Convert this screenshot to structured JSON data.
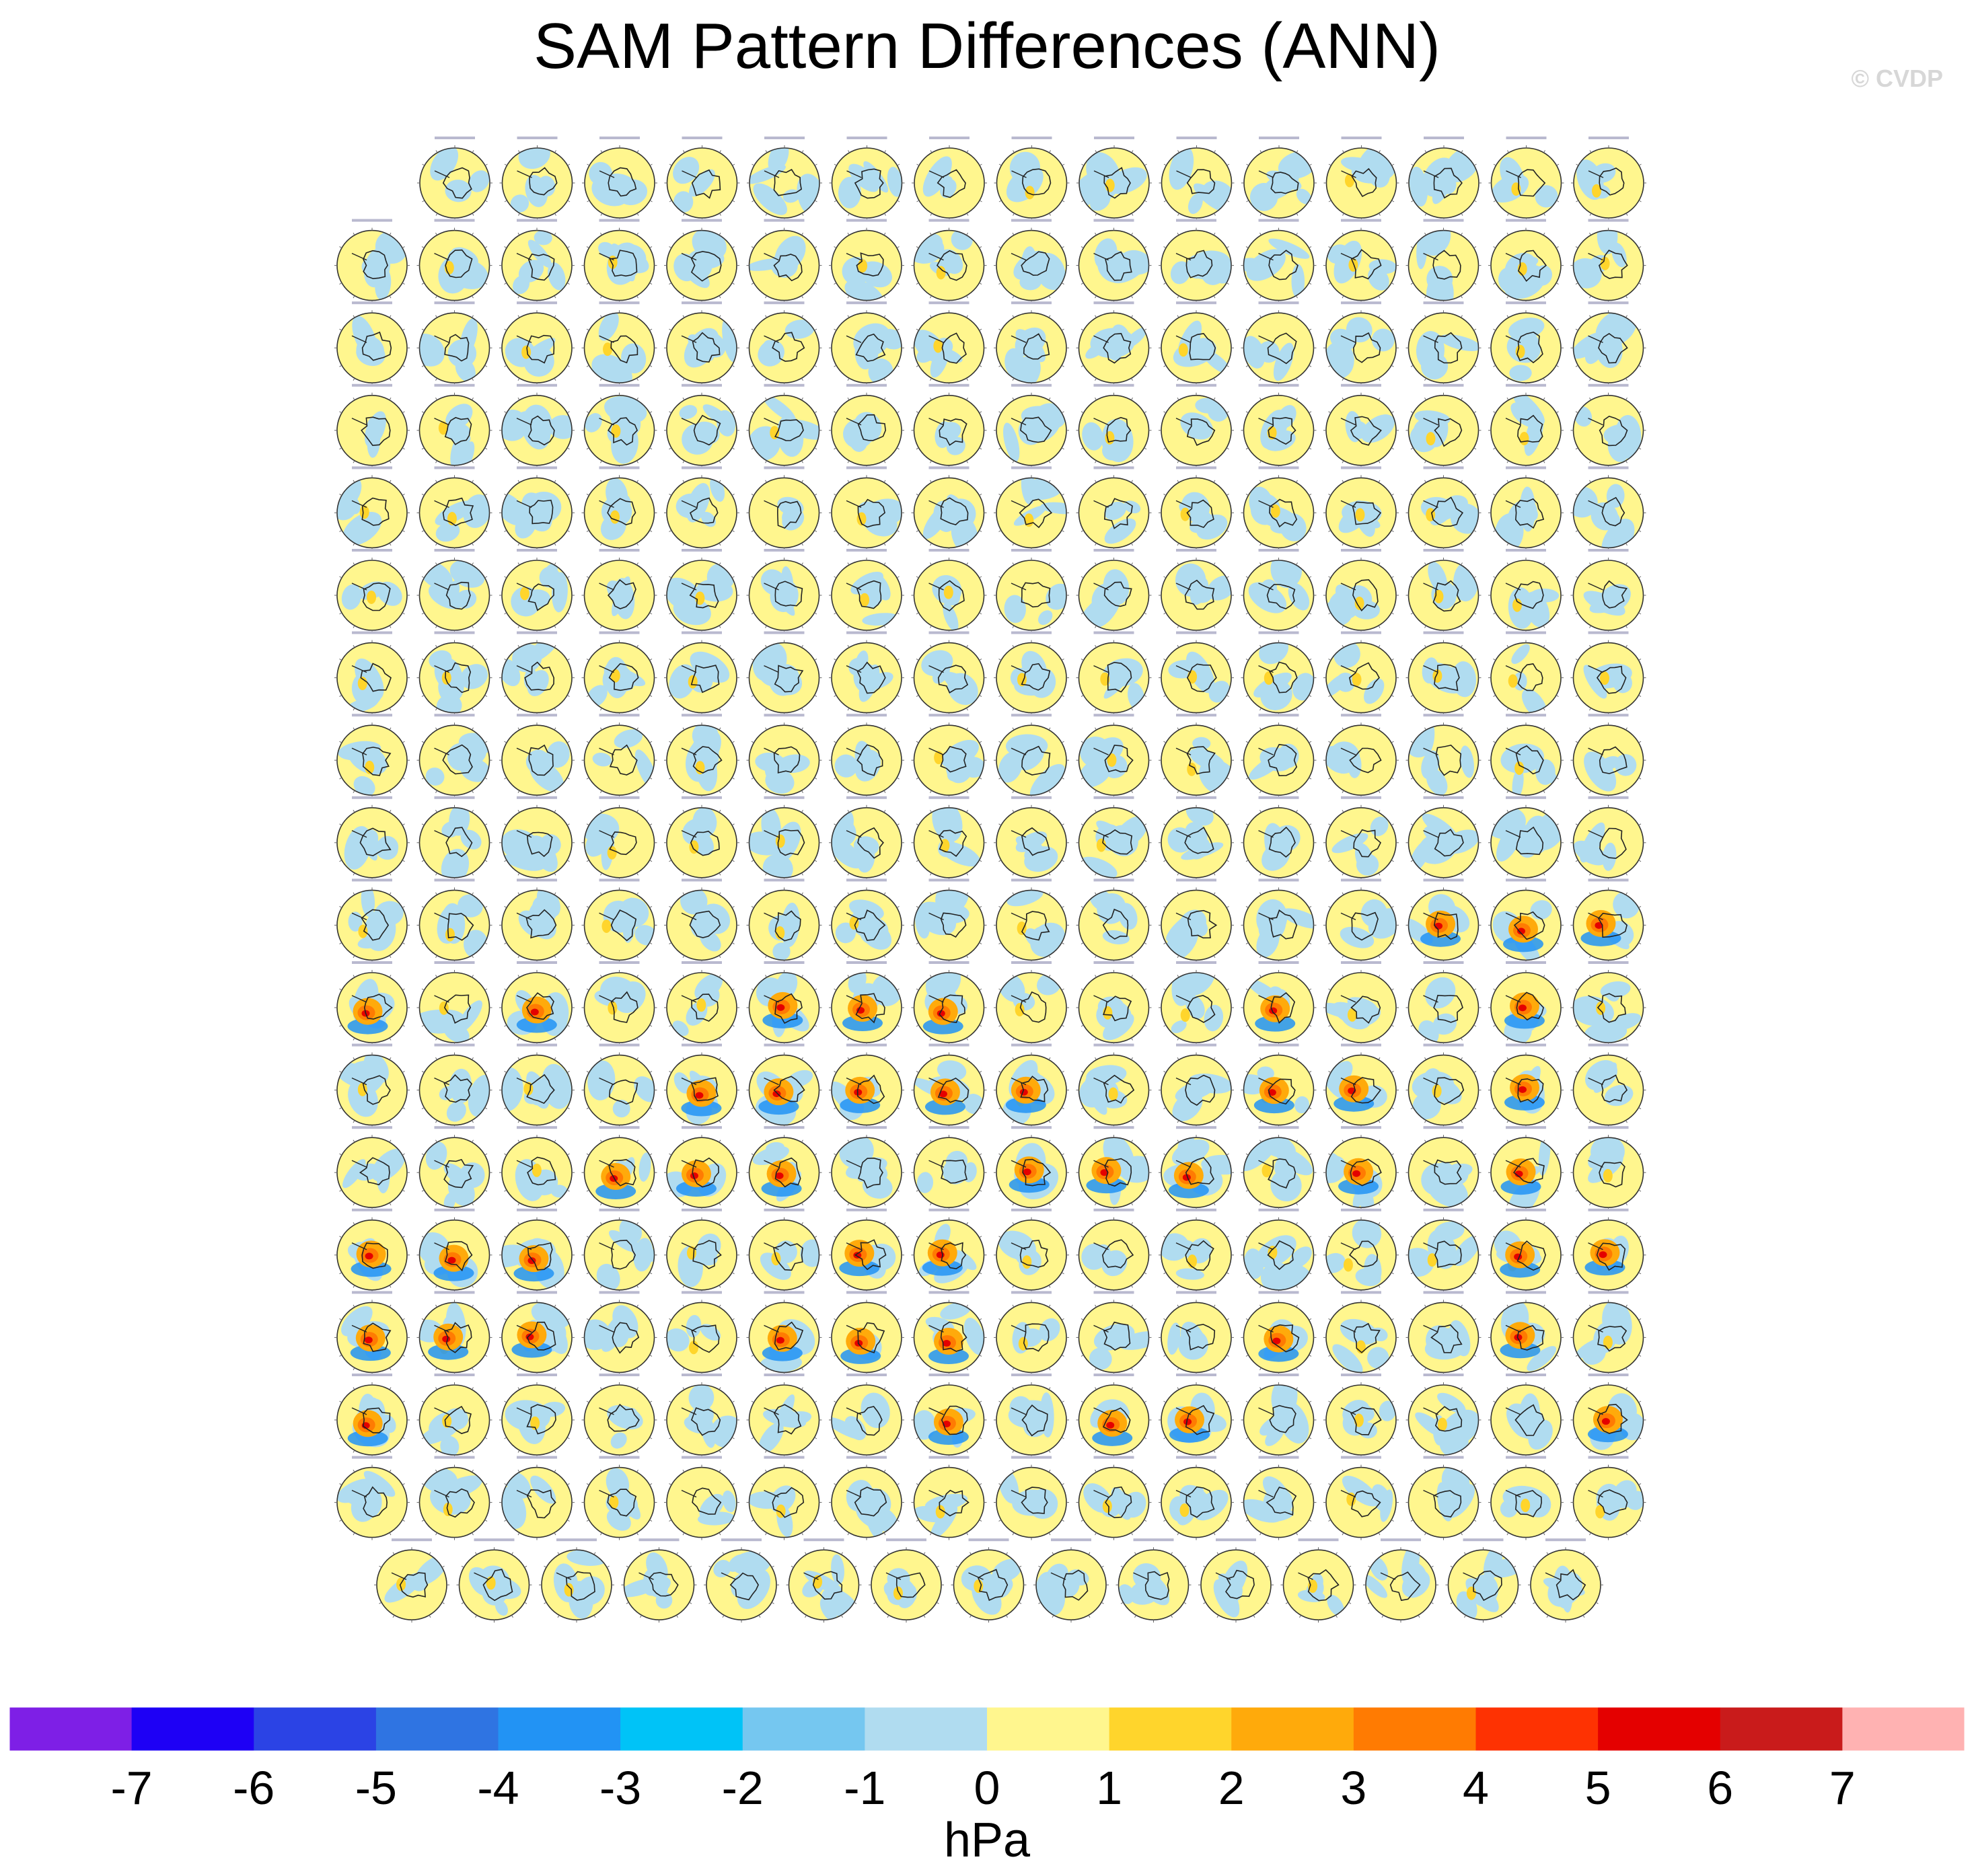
{
  "title": "SAM Pattern Differences (ANN)",
  "credit": "© CVDP",
  "chart_data": {
    "type": "heatmap",
    "title": "SAM Pattern Differences (ANN)",
    "units": "hPa",
    "colorbar": {
      "ticks": [
        "-7",
        "-6",
        "-5",
        "-4",
        "-3",
        "-2",
        "-1",
        "0",
        "1",
        "2",
        "3",
        "4",
        "5",
        "6",
        "7"
      ],
      "colors": [
        "#7e1fe6",
        "#1e00f5",
        "#2b43e5",
        "#2f74e2",
        "#2293f4",
        "#00c3f7",
        "#75c7f0",
        "#b0dcf0",
        "#fff68e",
        "#ffd52c",
        "#ffaa0b",
        "#ff7b02",
        "#fe3202",
        "#e40000",
        "#c91b1b",
        "#ffb2b2"
      ]
    },
    "panel_rows": [
      15,
      16,
      16,
      16,
      16,
      16,
      16,
      16,
      16,
      16,
      16,
      16,
      16,
      16,
      16,
      16,
      16,
      15
    ],
    "strong_anomaly_panels": [
      [
        9,
        13
      ],
      [
        9,
        14
      ],
      [
        9,
        15
      ],
      [
        10,
        0
      ],
      [
        10,
        2
      ],
      [
        10,
        5
      ],
      [
        10,
        6
      ],
      [
        10,
        7
      ],
      [
        10,
        11
      ],
      [
        10,
        14
      ],
      [
        11,
        4
      ],
      [
        11,
        5
      ],
      [
        11,
        6
      ],
      [
        11,
        7
      ],
      [
        11,
        8
      ],
      [
        11,
        11
      ],
      [
        11,
        12
      ],
      [
        11,
        14
      ],
      [
        12,
        3
      ],
      [
        12,
        4
      ],
      [
        12,
        5
      ],
      [
        12,
        8
      ],
      [
        12,
        9
      ],
      [
        12,
        10
      ],
      [
        12,
        12
      ],
      [
        12,
        14
      ],
      [
        13,
        0
      ],
      [
        13,
        1
      ],
      [
        13,
        2
      ],
      [
        13,
        6
      ],
      [
        13,
        7
      ],
      [
        13,
        14
      ],
      [
        13,
        15
      ],
      [
        14,
        0
      ],
      [
        14,
        1
      ],
      [
        14,
        2
      ],
      [
        14,
        5
      ],
      [
        14,
        6
      ],
      [
        14,
        7
      ],
      [
        14,
        11
      ],
      [
        14,
        14
      ],
      [
        15,
        0
      ],
      [
        15,
        7
      ],
      [
        15,
        9
      ],
      [
        15,
        10
      ],
      [
        15,
        15
      ]
    ]
  }
}
